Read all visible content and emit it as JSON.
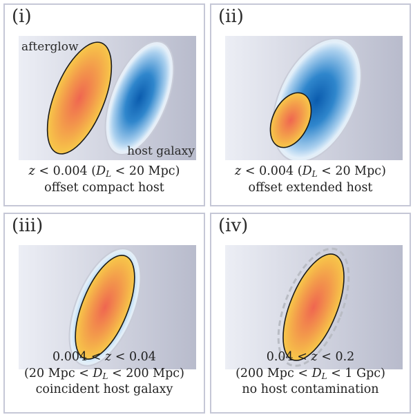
{
  "panels": [
    {
      "label": "(i)",
      "afterglow_label": "afterglow",
      "host_label": "host galaxy",
      "caption": {
        "z": "z",
        "z_rel": " < 0.004 (",
        "dl": "D",
        "dl_sub": "L",
        "dl_rel": " < 20 Mpc)",
        "line2": "offset compact host"
      }
    },
    {
      "label": "(ii)",
      "caption": {
        "z": "z",
        "z_rel": " < 0.004 (",
        "dl": "D",
        "dl_sub": "L",
        "dl_rel": " < 20 Mpc)",
        "line2": "offset extended host"
      }
    },
    {
      "label": "(iii)",
      "caption": {
        "z_pre": "0.004 < ",
        "z": "z",
        "z_post": " < 0.04",
        "dl_pre": "(20 Mpc < ",
        "dl": "D",
        "dl_sub": "L",
        "dl_post": " < 200 Mpc)",
        "line3": "coincident host galaxy"
      }
    },
    {
      "label": "(iv)",
      "caption": {
        "z_pre": "0.04 < ",
        "z": "z",
        "z_post": " < 0.2",
        "dl_pre": "(200 Mpc < ",
        "dl": "D",
        "dl_sub": "L",
        "dl_post": " < 1 Gpc)",
        "line3": "no host contamination"
      }
    }
  ],
  "colors": {
    "frame": "#c5c7d6",
    "background_light": "#eef0f6",
    "background_dark": "#b9bccd",
    "afterglow_inner": "#ef6a50",
    "afterglow_outer": "#f6c44a",
    "host_inner": "#0d62b4",
    "host_outer": "#d8eaf7"
  }
}
